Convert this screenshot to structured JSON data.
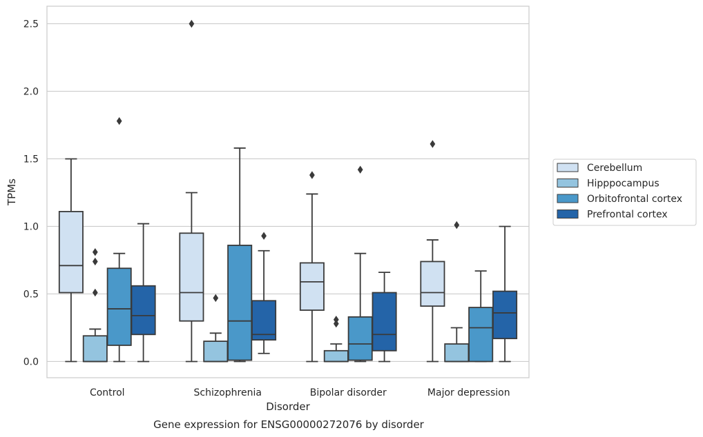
{
  "chart_data": {
    "type": "box",
    "caption": "Gene expression for ENSG00000272076 by disorder",
    "xlabel": "Disorder",
    "ylabel": "TPMs",
    "ylim": [
      -0.12,
      2.63
    ],
    "yticks": [
      "0.0",
      "0.5",
      "1.0",
      "1.5",
      "2.0",
      "2.5"
    ],
    "ytick_values": [
      0,
      0.5,
      1.0,
      1.5,
      2.0,
      2.5
    ],
    "grid": true,
    "legend_position": "right",
    "categories": [
      "Control",
      "Schizophrenia",
      "Bipolar disorder",
      "Major depression"
    ],
    "series": [
      {
        "name": "Cerebellum",
        "color": "#d0e1f2",
        "boxes": [
          {
            "whislo": 0.0,
            "q1": 0.51,
            "med": 0.71,
            "q3": 1.11,
            "whishi": 1.5,
            "fliers": []
          },
          {
            "whislo": 0.0,
            "q1": 0.3,
            "med": 0.51,
            "q3": 0.95,
            "whishi": 1.25,
            "fliers": [
              2.5
            ]
          },
          {
            "whislo": 0.0,
            "q1": 0.38,
            "med": 0.59,
            "q3": 0.73,
            "whishi": 1.24,
            "fliers": [
              1.38
            ]
          },
          {
            "whislo": 0.0,
            "q1": 0.41,
            "med": 0.51,
            "q3": 0.74,
            "whishi": 0.9,
            "fliers": [
              1.61
            ]
          }
        ]
      },
      {
        "name": "Hipppocampus",
        "color": "#94c4df",
        "boxes": [
          {
            "whislo": 0.0,
            "q1": 0.0,
            "med": 0.0,
            "q3": 0.19,
            "whishi": 0.24,
            "fliers": [
              0.51,
              0.74,
              0.81
            ]
          },
          {
            "whislo": 0.0,
            "q1": 0.0,
            "med": 0.0,
            "q3": 0.15,
            "whishi": 0.21,
            "fliers": [
              0.47
            ]
          },
          {
            "whislo": 0.0,
            "q1": 0.0,
            "med": 0.0,
            "q3": 0.08,
            "whishi": 0.13,
            "fliers": [
              0.28,
              0.31
            ]
          },
          {
            "whislo": 0.0,
            "q1": 0.0,
            "med": 0.0,
            "q3": 0.13,
            "whishi": 0.25,
            "fliers": [
              1.01
            ]
          }
        ]
      },
      {
        "name": "Orbitofrontal cortex",
        "color": "#4a98c9",
        "boxes": [
          {
            "whislo": 0.0,
            "q1": 0.12,
            "med": 0.39,
            "q3": 0.69,
            "whishi": 0.8,
            "fliers": [
              1.78
            ]
          },
          {
            "whislo": 0.0,
            "q1": 0.01,
            "med": 0.3,
            "q3": 0.86,
            "whishi": 1.58,
            "fliers": []
          },
          {
            "whislo": 0.0,
            "q1": 0.01,
            "med": 0.13,
            "q3": 0.33,
            "whishi": 0.8,
            "fliers": [
              1.42
            ]
          },
          {
            "whislo": 0.0,
            "q1": 0.0,
            "med": 0.25,
            "q3": 0.4,
            "whishi": 0.67,
            "fliers": []
          }
        ]
      },
      {
        "name": "Prefrontal cortex",
        "color": "#2464a8",
        "boxes": [
          {
            "whislo": 0.0,
            "q1": 0.2,
            "med": 0.34,
            "q3": 0.56,
            "whishi": 1.02,
            "fliers": []
          },
          {
            "whislo": 0.06,
            "q1": 0.16,
            "med": 0.2,
            "q3": 0.45,
            "whishi": 0.82,
            "fliers": [
              0.93
            ]
          },
          {
            "whislo": 0.0,
            "q1": 0.08,
            "med": 0.2,
            "q3": 0.51,
            "whishi": 0.66,
            "fliers": []
          },
          {
            "whislo": 0.0,
            "q1": 0.17,
            "med": 0.36,
            "q3": 0.52,
            "whishi": 1.0,
            "fliers": []
          }
        ]
      }
    ]
  }
}
